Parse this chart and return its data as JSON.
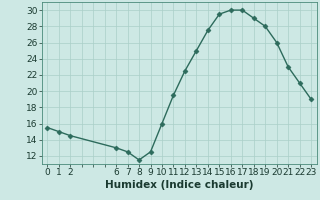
{
  "x": [
    0,
    1,
    2,
    6,
    7,
    8,
    9,
    10,
    11,
    12,
    13,
    14,
    15,
    16,
    17,
    18,
    19,
    20,
    21,
    22,
    23
  ],
  "y": [
    15.5,
    15.0,
    14.5,
    13.0,
    12.5,
    11.5,
    12.5,
    16.0,
    19.5,
    22.5,
    25.0,
    27.5,
    29.5,
    30.0,
    30.0,
    29.0,
    28.0,
    26.0,
    23.0,
    21.0,
    19.0
  ],
  "xlabel": "Humidex (Indice chaleur)",
  "xtick_positions": [
    0,
    1,
    2,
    3,
    4,
    5,
    6,
    7,
    8,
    9,
    10,
    11,
    12,
    13,
    14,
    15,
    16,
    17,
    18,
    19,
    20,
    21,
    22,
    23
  ],
  "xtick_labels": [
    "0",
    "1",
    "2",
    "",
    "",
    "",
    "6",
    "7",
    "8",
    "9",
    "10",
    "11",
    "12",
    "13",
    "14",
    "15",
    "16",
    "17",
    "18",
    "19",
    "20",
    "21",
    "22",
    "23"
  ],
  "ylim": [
    11,
    31
  ],
  "xlim": [
    -0.5,
    23.5
  ],
  "yticks": [
    12,
    14,
    16,
    18,
    20,
    22,
    24,
    26,
    28,
    30
  ],
  "line_color": "#2d6b5c",
  "marker_color": "#2d6b5c",
  "bg_color": "#cde8e4",
  "grid_color": "#aacfc8",
  "xlabel_fontsize": 7.5,
  "tick_fontsize": 6.5
}
